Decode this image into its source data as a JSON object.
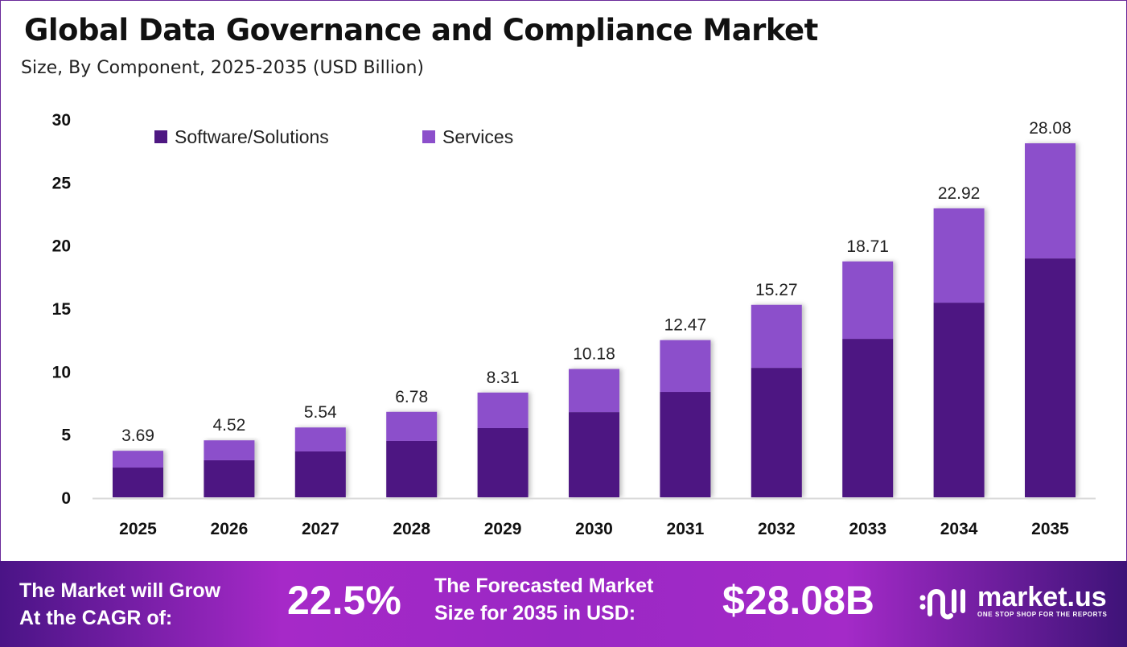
{
  "title": "Global Data Governance and Compliance Market",
  "subtitle": "Size, By Component, 2025-2035 (USD Billion)",
  "chart_data": {
    "type": "bar",
    "stacked": true,
    "categories": [
      "2025",
      "2026",
      "2027",
      "2028",
      "2029",
      "2030",
      "2031",
      "2032",
      "2033",
      "2034",
      "2035"
    ],
    "series": [
      {
        "name": "Software/Solutions",
        "color": "#4E1882",
        "values": [
          2.36,
          2.94,
          3.64,
          4.47,
          5.49,
          6.76,
          8.36,
          10.27,
          12.57,
          15.44,
          18.95
        ]
      },
      {
        "name": "Services",
        "color": "#8C4FCB",
        "values": [
          1.33,
          1.58,
          1.9,
          2.31,
          2.82,
          3.42,
          4.11,
          5.0,
          6.14,
          7.48,
          9.13
        ]
      }
    ],
    "totals": [
      "3.69",
      "4.52",
      "5.54",
      "6.78",
      "8.31",
      "10.18",
      "12.47",
      "15.27",
      "18.71",
      "22.92",
      "28.08"
    ],
    "yticks": [
      "0",
      "5",
      "10",
      "15",
      "20",
      "25",
      "30"
    ],
    "ylim": [
      0,
      30
    ],
    "grid": false,
    "legend": "top-left"
  },
  "footer": {
    "cagr_label_1": "The Market will Grow",
    "cagr_label_2": "At the CAGR of:",
    "cagr_value": "22.5%",
    "forecast_label_1": "The Forecasted Market",
    "forecast_label_2": "Size for 2035 in USD:",
    "forecast_value": "$28.08B",
    "logo_name": "market.us",
    "logo_tagline": "ONE STOP SHOP FOR THE REPORTS"
  }
}
